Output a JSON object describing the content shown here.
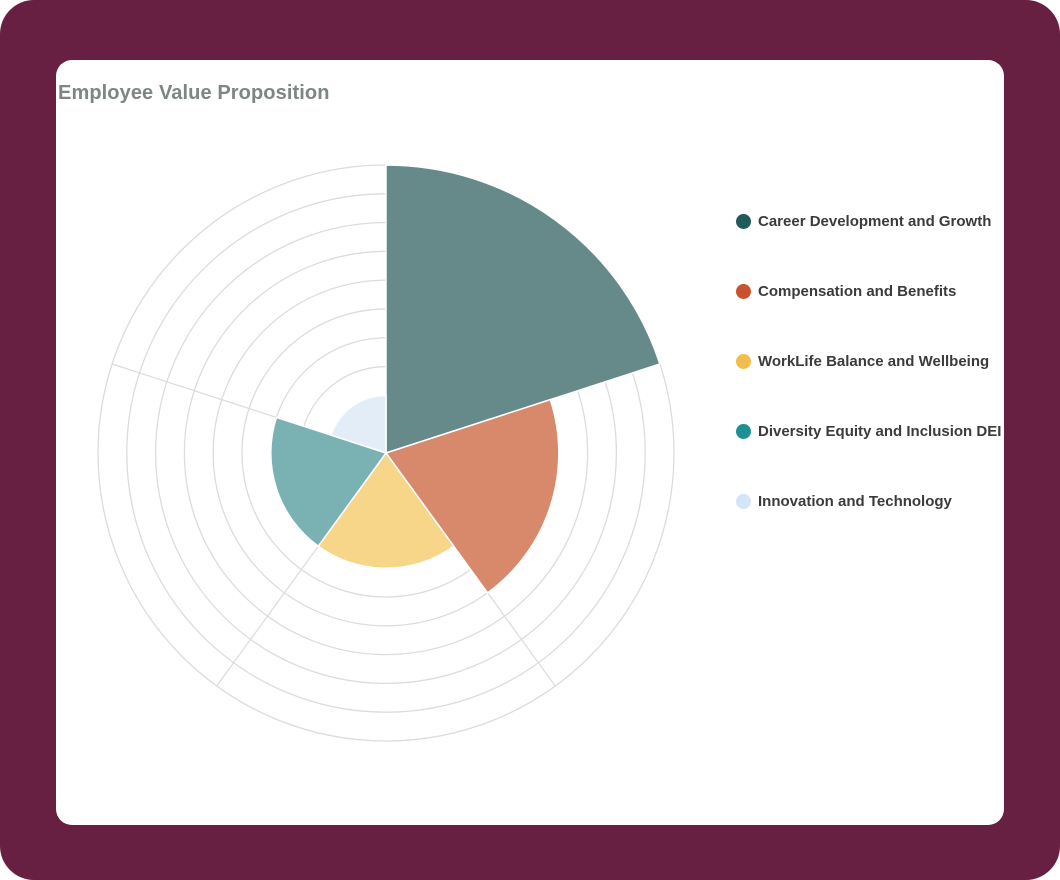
{
  "chart_data": {
    "type": "polar_area",
    "title": "Employee Value Proposition",
    "r_max": 10,
    "r_ticks": [
      1,
      2,
      3,
      4,
      5,
      6,
      7,
      8,
      9,
      10
    ],
    "grid": true,
    "legend_position": "right",
    "series": [
      {
        "label": "Career Development and Growth",
        "value": 10,
        "color": "#1f5a5c",
        "fill": "#668a89"
      },
      {
        "label": "Compensation and Benefits",
        "value": 6,
        "color": "#c9522e",
        "fill": "#d8886b"
      },
      {
        "label": "WorkLife Balance and Wellbeing",
        "value": 4,
        "color": "#f2bd4f",
        "fill": "#f7d589"
      },
      {
        "label": "Diversity Equity and Inclusion DEI",
        "value": 4,
        "color": "#1d9094",
        "fill": "#7ab1b2"
      },
      {
        "label": "Innovation and Technology",
        "value": 2,
        "color": "#d3e6f7",
        "fill": "#e2edf8"
      }
    ]
  }
}
